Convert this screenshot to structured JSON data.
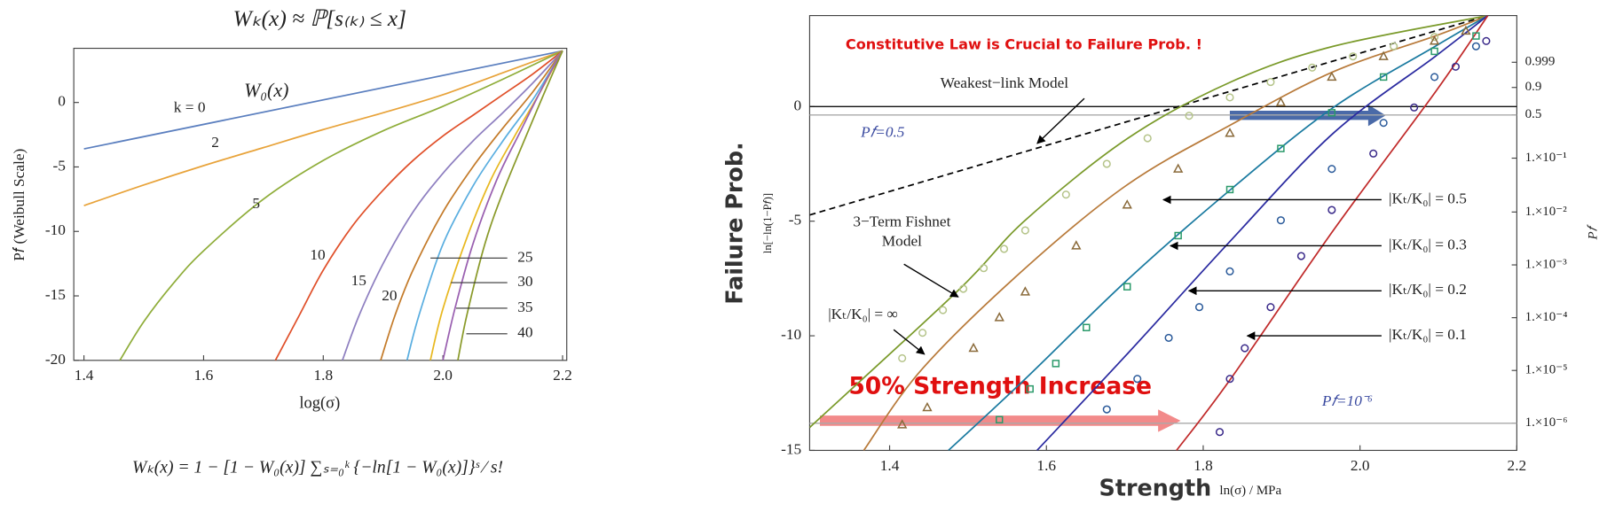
{
  "chart_data": [
    {
      "type": "line",
      "title": "Wₖ(x) ≈ ℙ[s₍ₖ₎ ≤ x]",
      "annotation": "W₀(x)",
      "formula": "Wₖ(x) = 1 − [1 − W₀(x)] ∑ₛ₌₀ᵏ {−ln[1 − W₀(x)]}ˢ ⁄ s!",
      "x_label": "log(σ)",
      "y_label": "P𝑓 (Weibull Scale)",
      "xlim": [
        1.383,
        2.207
      ],
      "ylim": [
        -20,
        4.2
      ],
      "xticks": [
        1.4,
        1.6,
        1.8,
        {
          "value": 2,
          "label": "2.0"
        },
        2.2
      ],
      "yticks": [
        -20,
        -15,
        -10,
        -5,
        0
      ],
      "series": [
        {
          "name": "k = 0",
          "color": "#5b7fbf",
          "x": [
            1.4,
            2.2
          ],
          "values": [
            -3.6,
            4
          ]
        },
        {
          "name": "2",
          "color": "#e8a33a",
          "x": [
            1.4,
            1.5,
            1.6,
            1.7,
            1.8,
            1.9,
            2.0,
            2.1,
            2.2
          ],
          "values": [
            -8,
            -6.4,
            -4.9,
            -3.5,
            -2.1,
            -0.8,
            0.6,
            2.3,
            4
          ]
        },
        {
          "name": "5",
          "color": "#8fad3a",
          "x": [
            1.46,
            1.5,
            1.55,
            1.6,
            1.7,
            1.8,
            1.9,
            2.0,
            2.1,
            2.2
          ],
          "values": [
            -20,
            -17,
            -14,
            -11.5,
            -7.5,
            -4.5,
            -2.2,
            -0.3,
            1.8,
            4
          ]
        },
        {
          "name": "10",
          "color": "#e0502a",
          "x": [
            1.72,
            1.76,
            1.8,
            1.85,
            1.9,
            1.95,
            2.0,
            2.05,
            2.1,
            2.15,
            2.2
          ],
          "values": [
            -20,
            -16.5,
            -13,
            -9.5,
            -6.8,
            -4.5,
            -2.6,
            -1,
            0.6,
            2.2,
            4
          ]
        },
        {
          "name": "15",
          "color": "#8e7fc0",
          "x": [
            1.832,
            1.86,
            1.9,
            1.95,
            2.0,
            2.05,
            2.1,
            2.15,
            2.2
          ],
          "values": [
            -20,
            -16.5,
            -12.5,
            -8.5,
            -5.5,
            -3,
            -0.8,
            1.5,
            4
          ]
        },
        {
          "name": "20",
          "color": "#c47b2a",
          "x": [
            1.896,
            1.92,
            1.95,
            2.0,
            2.05,
            2.1,
            2.15,
            2.2
          ],
          "values": [
            -20,
            -16.5,
            -13,
            -8.5,
            -5,
            -2,
            0.8,
            4
          ]
        },
        {
          "name": "25",
          "color": "#5aaee0",
          "x": [
            1.94,
            1.96,
            2.0,
            2.05,
            2.1,
            2.15,
            2.2
          ],
          "values": [
            -20,
            -16.5,
            -11,
            -6.5,
            -3,
            0.2,
            4
          ]
        },
        {
          "name": "30",
          "color": "#e8b820",
          "x": [
            1.979,
            2.0,
            2.04,
            2.08,
            2.12,
            2.16,
            2.2
          ],
          "values": [
            -20,
            -16,
            -10.5,
            -6,
            -2.6,
            0.6,
            4
          ]
        },
        {
          "name": "35",
          "color": "#9a60b0",
          "x": [
            2.0,
            2.02,
            2.05,
            2.09,
            2.13,
            2.17,
            2.2
          ],
          "values": [
            -20,
            -16,
            -11,
            -6,
            -2.2,
            1.5,
            4
          ]
        },
        {
          "name": "40",
          "color": "#8a9a2a",
          "x": [
            2.025,
            2.04,
            2.07,
            2.1,
            2.14,
            2.17,
            2.2
          ],
          "values": [
            -20,
            -16.5,
            -11,
            -7,
            -2.5,
            0.8,
            4
          ]
        }
      ]
    },
    {
      "type": "line",
      "annotations": [
        "Constitutive Law is Crucial to Failure Prob. !",
        "50% Strength Increase"
      ],
      "x_label": "Strength",
      "x_sublabel": "ln(σ) / MPa",
      "y_label": "Failure Prob.",
      "y_sublabel": "ln[−ln(1−P𝑓)]",
      "y2_label": "P𝑓",
      "xlim": [
        1.298,
        2.2
      ],
      "ylim": [
        -15,
        3.97
      ],
      "xticks": [
        1.4,
        1.6,
        1.8,
        {
          "value": 2,
          "label": "2.0"
        },
        2.2
      ],
      "yticks": [
        -15,
        -10,
        -5,
        0
      ],
      "y2_scale": "weibull",
      "y2ticks": [
        0.999,
        0.9,
        0.5,
        {
          "value": 0.1,
          "label": "1.×10⁻¹"
        },
        {
          "value": 0.01,
          "label": "1.×10⁻²"
        },
        {
          "value": 0.001,
          "label": "1.×10⁻³"
        },
        {
          "value": 0.0001,
          "label": "1.×10⁻⁴"
        },
        {
          "value": 1e-05,
          "label": "1.×10⁻⁵"
        },
        {
          "value": 1e-06,
          "label": "1.×10⁻⁶"
        }
      ],
      "hlines": [
        {
          "value": 0
        },
        {
          "axis": "y2",
          "value": 0.5,
          "label": "P𝑓=0.5"
        },
        {
          "axis": "y2",
          "value": 1e-06,
          "label": "P𝑓=10⁻⁶"
        }
      ],
      "series": [
        {
          "name": "Weakest−link Model",
          "color": "#000000",
          "style": "dashed",
          "x": [
            1.298,
            2.163
          ],
          "values": [
            -4.73,
            3.97
          ]
        },
        {
          "name": "3−Term Fishnet Model",
          "color": "#7a9a2a",
          "style": "solid",
          "x": [
            1.298,
            1.488,
            1.573,
            1.704,
            1.835,
            1.966,
            2.163
          ],
          "values": [
            -14.0,
            -8.0,
            -4.96,
            -1.38,
            1.07,
            2.63,
            3.97
          ]
        },
        {
          "color": "#b87a3a",
          "style": "solid",
          "x": [
            1.367,
            1.442,
            1.573,
            1.704,
            1.835,
            1.966,
            2.096,
            2.163
          ],
          "values": [
            -15,
            -11.43,
            -7.05,
            -3.39,
            -0.8,
            1.52,
            3.08,
            3.97
          ]
        },
        {
          "color": "#1a7aa0",
          "style": "solid",
          "x": [
            1.475,
            1.573,
            1.704,
            1.835,
            1.966,
            2.096,
            2.163
          ],
          "values": [
            -15,
            -11.88,
            -7.54,
            -3.62,
            -0.04,
            2.63,
            3.97
          ]
        },
        {
          "color": "#2a2aa0",
          "style": "solid",
          "x": [
            1.588,
            1.704,
            1.835,
            1.966,
            2.096,
            2.163
          ],
          "values": [
            -15,
            -10.76,
            -5.85,
            -1.16,
            2.19,
            3.97
          ]
        },
        {
          "color": "#c02a2a",
          "style": "solid",
          "x": [
            1.766,
            1.835,
            1.966,
            2.096,
            2.163
          ],
          "values": [
            -15,
            -11.88,
            -5.4,
            0.63,
            3.97
          ]
        },
        {
          "name": "|Kₜ/K₀| = ∞",
          "color": "#b5c48a",
          "style": "markers",
          "marker": "circle",
          "x": [
            1.416,
            1.442,
            1.468,
            1.494,
            1.52,
            1.546,
            1.573,
            1.625,
            1.677,
            1.729,
            1.782,
            1.834,
            1.886,
            1.939,
            1.991,
            2.043,
            2.095
          ],
          "values": [
            -10.98,
            -9.87,
            -8.88,
            -7.95,
            -7.05,
            -6.21,
            -5.4,
            -3.84,
            -2.5,
            -1.38,
            -0.4,
            0.4,
            1.07,
            1.7,
            2.19,
            2.63,
            3.04
          ]
        },
        {
          "name": "|Kₜ/K₀| = 0.5",
          "color": "#8a6a3a",
          "style": "markers",
          "marker": "triangle",
          "x": [
            1.416,
            1.448,
            1.507,
            1.54,
            1.573,
            1.638,
            1.703,
            1.768,
            1.834,
            1.899,
            1.964,
            2.03,
            2.095,
            2.135
          ],
          "values": [
            -13.88,
            -13.13,
            -10.54,
            -9.2,
            -8.08,
            -6.07,
            -4.29,
            -2.72,
            -1.16,
            0.18,
            1.29,
            2.19,
            2.86,
            3.3
          ]
        },
        {
          "name": "|Kₜ/K₀| = 0.3",
          "color": "#2a9a6a",
          "style": "markers",
          "marker": "square",
          "x": [
            1.54,
            1.579,
            1.612,
            1.651,
            1.703,
            1.768,
            1.834,
            1.899,
            1.964,
            2.03,
            2.095,
            2.148
          ],
          "values": [
            -13.66,
            -12.32,
            -11.21,
            -9.64,
            -7.86,
            -5.63,
            -3.62,
            -1.83,
            -0.27,
            1.29,
            2.41,
            3.08
          ]
        },
        {
          "name": "|Kₜ/K₀| = 0.2",
          "color": "#2a5a9a",
          "style": "markers",
          "marker": "circle",
          "x": [
            1.677,
            1.716,
            1.756,
            1.795,
            1.834,
            1.899,
            1.964,
            2.03,
            2.095,
            2.148
          ],
          "values": [
            -13.21,
            -11.88,
            -10.09,
            -8.75,
            -7.19,
            -4.96,
            -2.72,
            -0.71,
            1.29,
            2.63
          ]
        },
        {
          "name": "|Kₜ/K₀| = 0.1",
          "color": "#3a2a8a",
          "style": "markers",
          "marker": "circle",
          "x": [
            1.821,
            1.834,
            1.853,
            1.886,
            1.925,
            1.964,
            2.017,
            2.069,
            2.122,
            2.161
          ],
          "values": [
            -14.2,
            -11.88,
            -10.54,
            -8.75,
            -6.52,
            -4.51,
            -2.05,
            -0.04,
            1.74,
            2.86
          ]
        }
      ]
    }
  ]
}
